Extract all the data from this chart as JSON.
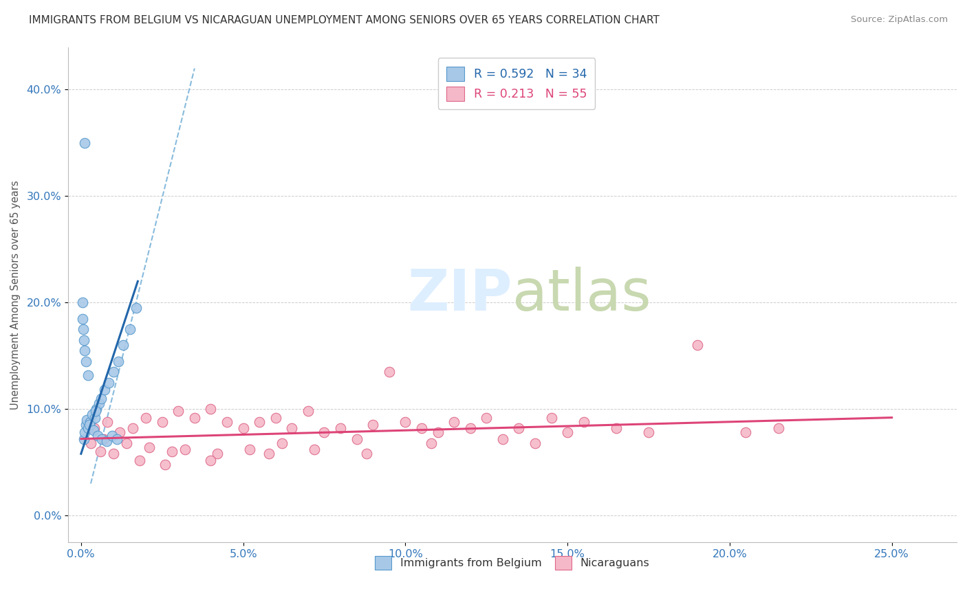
{
  "title": "IMMIGRANTS FROM BELGIUM VS NICARAGUAN UNEMPLOYMENT AMONG SENIORS OVER 65 YEARS CORRELATION CHART",
  "source": "Source: ZipAtlas.com",
  "xlabel_vals": [
    0.0,
    5.0,
    10.0,
    15.0,
    20.0,
    25.0
  ],
  "ylabel_vals": [
    0.0,
    10.0,
    20.0,
    30.0,
    40.0
  ],
  "ylabel_label": "Unemployment Among Seniors over 65 years",
  "xlim": [
    -0.4,
    27.0
  ],
  "ylim": [
    -2.5,
    44
  ],
  "legend_r1": "R = 0.592",
  "legend_n1": "N = 34",
  "legend_r2": "R = 0.213",
  "legend_n2": "N = 55",
  "blue_fill": "#a8c8e8",
  "blue_edge": "#5599cc",
  "pink_fill": "#f5b8c8",
  "pink_edge": "#dd6688",
  "blue_line_color": "#2266aa",
  "pink_line_color": "#dd4477",
  "dashed_line_color": "#88bbdd",
  "watermark_color": "#ddeeff",
  "background_color": "#ffffff",
  "blue_scatter": [
    [
      0.08,
      7.2
    ],
    [
      0.12,
      7.8
    ],
    [
      0.15,
      8.5
    ],
    [
      0.18,
      9.0
    ],
    [
      0.22,
      8.2
    ],
    [
      0.28,
      8.8
    ],
    [
      0.35,
      9.5
    ],
    [
      0.42,
      9.2
    ],
    [
      0.48,
      10.0
    ],
    [
      0.55,
      10.5
    ],
    [
      0.62,
      11.0
    ],
    [
      0.72,
      11.8
    ],
    [
      0.85,
      12.5
    ],
    [
      1.0,
      13.5
    ],
    [
      1.15,
      14.5
    ],
    [
      1.3,
      16.0
    ],
    [
      1.5,
      17.5
    ],
    [
      1.7,
      19.5
    ],
    [
      0.25,
      8.5
    ],
    [
      0.45,
      9.8
    ],
    [
      0.12,
      35.0
    ],
    [
      0.05,
      20.0
    ],
    [
      0.05,
      18.5
    ],
    [
      0.06,
      17.5
    ],
    [
      0.08,
      16.5
    ],
    [
      0.1,
      15.5
    ],
    [
      0.15,
      14.5
    ],
    [
      0.22,
      13.2
    ],
    [
      0.38,
      8.0
    ],
    [
      0.52,
      7.5
    ],
    [
      0.65,
      7.2
    ],
    [
      0.78,
      7.0
    ],
    [
      0.95,
      7.5
    ],
    [
      1.1,
      7.2
    ]
  ],
  "pink_scatter": [
    [
      0.4,
      8.2
    ],
    [
      0.8,
      8.8
    ],
    [
      1.2,
      7.8
    ],
    [
      1.6,
      8.2
    ],
    [
      2.0,
      9.2
    ],
    [
      2.5,
      8.8
    ],
    [
      3.0,
      9.8
    ],
    [
      3.5,
      9.2
    ],
    [
      4.0,
      10.0
    ],
    [
      4.5,
      8.8
    ],
    [
      5.0,
      8.2
    ],
    [
      5.5,
      8.8
    ],
    [
      6.0,
      9.2
    ],
    [
      6.5,
      8.2
    ],
    [
      7.0,
      9.8
    ],
    [
      7.5,
      7.8
    ],
    [
      8.0,
      8.2
    ],
    [
      8.5,
      7.2
    ],
    [
      9.0,
      8.5
    ],
    [
      9.5,
      13.5
    ],
    [
      10.0,
      8.8
    ],
    [
      10.5,
      8.2
    ],
    [
      11.0,
      7.8
    ],
    [
      11.5,
      8.8
    ],
    [
      12.0,
      8.2
    ],
    [
      12.5,
      9.2
    ],
    [
      13.0,
      7.2
    ],
    [
      13.5,
      8.2
    ],
    [
      14.0,
      6.8
    ],
    [
      14.5,
      9.2
    ],
    [
      15.0,
      7.8
    ],
    [
      15.5,
      8.8
    ],
    [
      16.5,
      8.2
    ],
    [
      17.5,
      7.8
    ],
    [
      19.0,
      16.0
    ],
    [
      20.5,
      7.8
    ],
    [
      21.5,
      8.2
    ],
    [
      1.0,
      5.8
    ],
    [
      1.8,
      5.2
    ],
    [
      3.2,
      6.2
    ],
    [
      4.2,
      5.8
    ],
    [
      5.2,
      6.2
    ],
    [
      6.2,
      6.8
    ],
    [
      2.6,
      4.8
    ],
    [
      4.0,
      5.2
    ],
    [
      0.7,
      7.2
    ],
    [
      1.4,
      6.8
    ],
    [
      2.8,
      6.0
    ],
    [
      2.1,
      6.4
    ],
    [
      5.8,
      5.8
    ],
    [
      7.2,
      6.2
    ],
    [
      8.8,
      5.8
    ],
    [
      10.8,
      6.8
    ],
    [
      0.3,
      6.8
    ],
    [
      0.6,
      6.0
    ]
  ],
  "blue_regline": [
    [
      0.0,
      5.8
    ],
    [
      1.75,
      22.0
    ]
  ],
  "pink_regline": [
    [
      0.0,
      7.2
    ],
    [
      25.0,
      9.2
    ]
  ],
  "blue_dashline": [
    [
      0.3,
      3.0
    ],
    [
      3.5,
      42.0
    ]
  ]
}
